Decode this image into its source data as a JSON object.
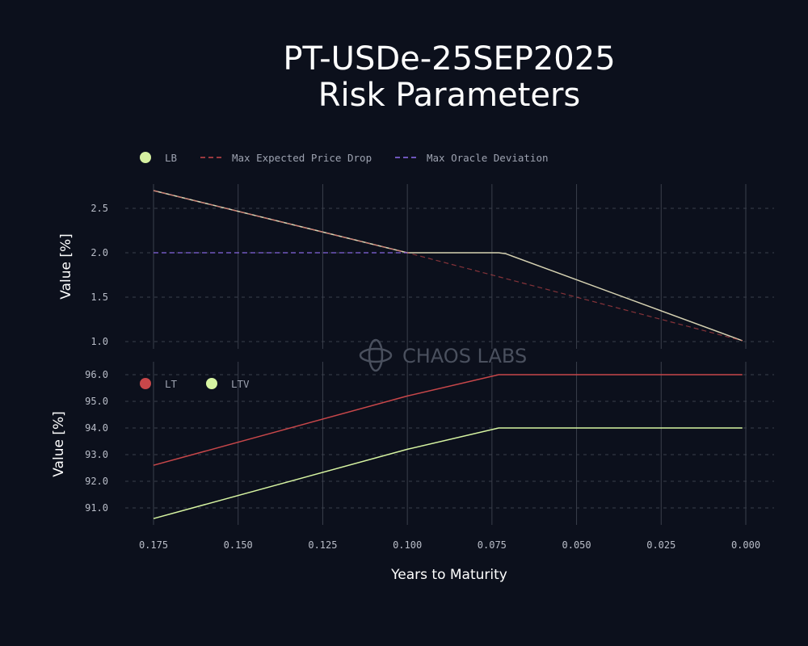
{
  "title_line1": "PT-USDe-25SEP2025",
  "title_line2": "Risk Parameters",
  "watermark": "CHAOS LABS",
  "colors": {
    "background": "#0c101c",
    "grid": "#3a3f4b",
    "lb": "#d5f0a0",
    "lb_line": "#d6d2b2",
    "price_drop": "#c8474a",
    "oracle": "#8f6df2",
    "lt": "#c8474a",
    "ltv": "#d7f5a2"
  },
  "chart_data": [
    {
      "type": "line",
      "xlabel": "Years to Maturity",
      "ylabel": "Value [%]",
      "xlim": [
        0.175,
        0.0
      ],
      "ylim": [
        1.0,
        2.7
      ],
      "xticks": [
        "0.175",
        "0.150",
        "0.125",
        "0.100",
        "0.075",
        "0.050",
        "0.025",
        "0.000"
      ],
      "yticks": [
        "1.0",
        "1.5",
        "2.0",
        "2.5"
      ],
      "legend": [
        "LB",
        "Max Expected Price Drop",
        "Max Oracle Deviation"
      ],
      "legend_position": "top-left",
      "grid": true,
      "series": [
        {
          "name": "LB",
          "style": "solid",
          "x": [
            0.175,
            0.1,
            0.073,
            0.071,
            0.001
          ],
          "y": [
            2.7,
            2.0,
            2.0,
            1.99,
            1.01
          ]
        },
        {
          "name": "Max Expected Price Drop",
          "style": "dashed",
          "x": [
            0.175,
            0.1,
            0.001
          ],
          "y": [
            2.7,
            2.0,
            1.01
          ]
        },
        {
          "name": "Max Oracle Deviation",
          "style": "dashed",
          "x": [
            0.175,
            0.1
          ],
          "y": [
            2.0,
            2.0
          ]
        }
      ]
    },
    {
      "type": "line",
      "xlabel": "Years to Maturity",
      "ylabel": "Value [%]",
      "xlim": [
        0.175,
        0.0
      ],
      "ylim": [
        90.6,
        96.0
      ],
      "xticks": [
        "0.175",
        "0.150",
        "0.125",
        "0.100",
        "0.075",
        "0.050",
        "0.025",
        "0.000"
      ],
      "yticks": [
        "91.0",
        "92.0",
        "93.0",
        "94.0",
        "95.0",
        "96.0"
      ],
      "legend": [
        "LT",
        "LTV"
      ],
      "legend_position": "top-left",
      "grid": true,
      "series": [
        {
          "name": "LT",
          "style": "solid",
          "x": [
            0.175,
            0.1,
            0.073,
            0.001
          ],
          "y": [
            92.6,
            95.2,
            96.0,
            96.0
          ]
        },
        {
          "name": "LTV",
          "style": "solid",
          "x": [
            0.175,
            0.1,
            0.073,
            0.001
          ],
          "y": [
            90.6,
            93.2,
            94.0,
            94.0
          ]
        }
      ]
    }
  ]
}
